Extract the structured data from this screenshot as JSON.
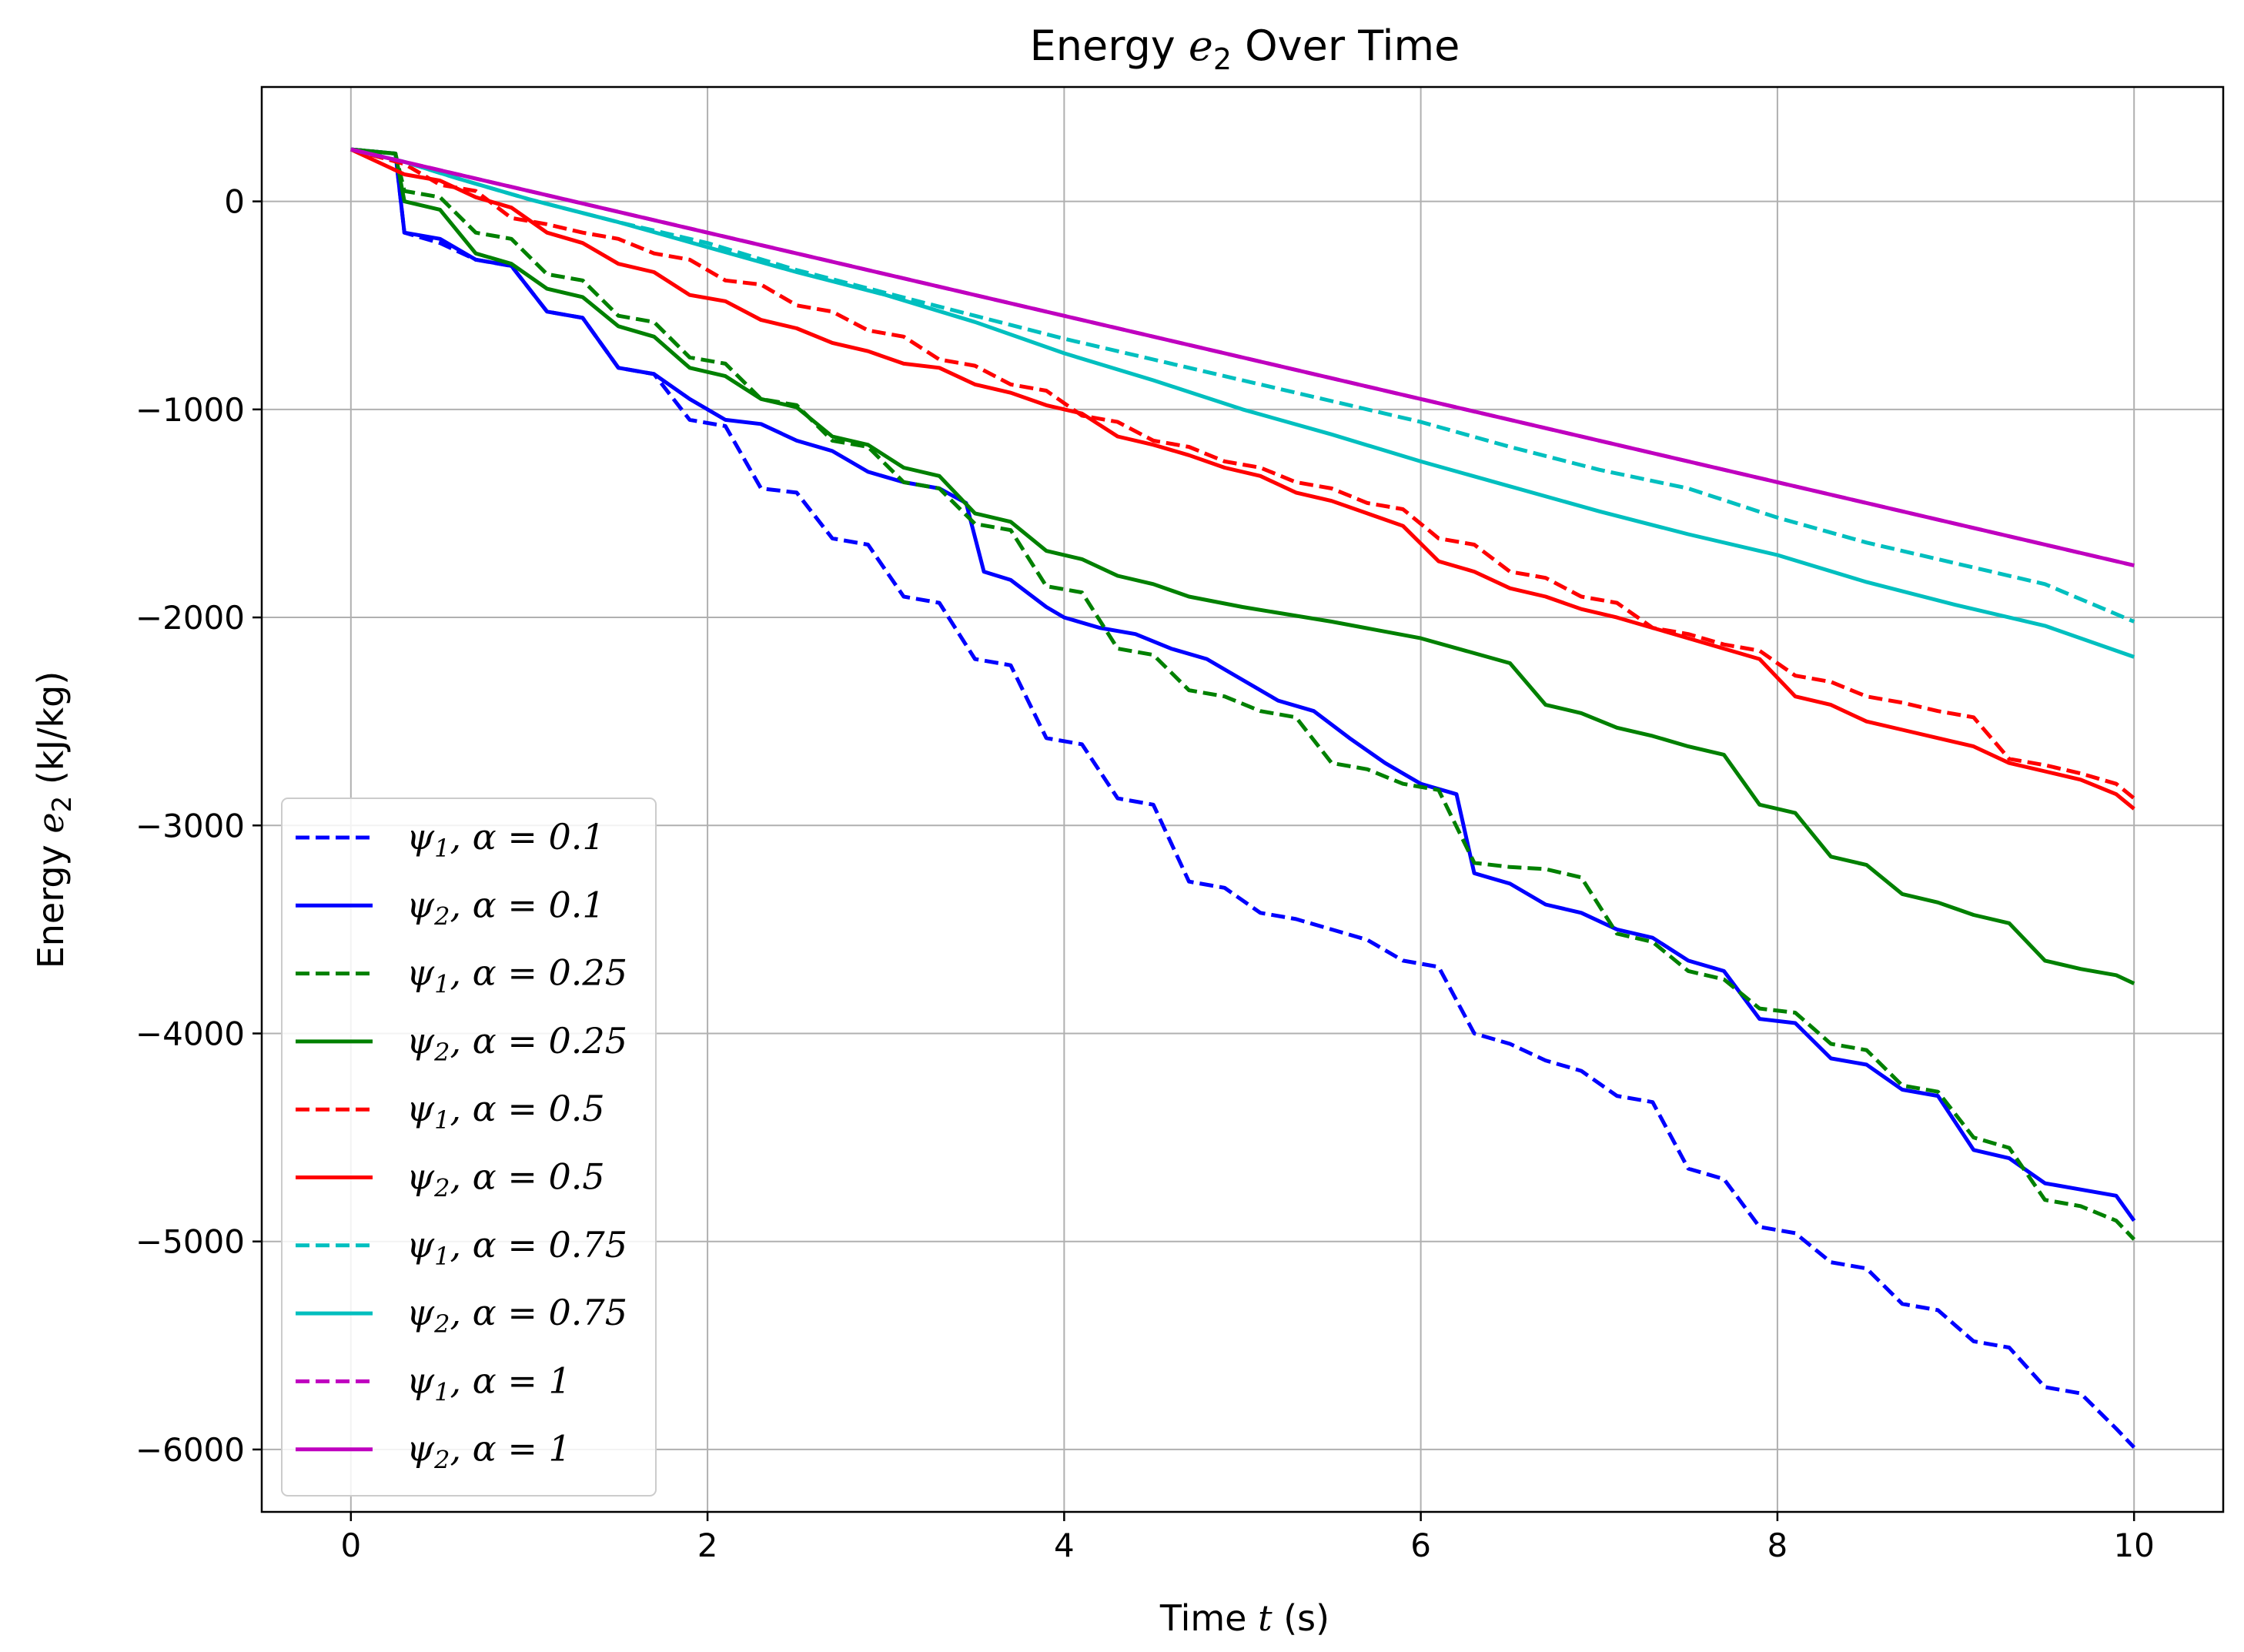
{
  "chart_data": {
    "type": "line",
    "title_prefix": "Energy ",
    "title_var": "e",
    "title_sub": "2",
    "title_suffix": " Over Time",
    "xlabel_prefix": "Time ",
    "xlabel_var": "t",
    "xlabel_suffix": " (s)",
    "ylabel_prefix": "Energy ",
    "ylabel_var": "e",
    "ylabel_sub": "2",
    "ylabel_suffix": " (kJ/kg)",
    "xlim": [
      -0.5,
      10.5
    ],
    "ylim": [
      -6300,
      550
    ],
    "xticks": [
      0,
      2,
      4,
      6,
      8,
      10
    ],
    "xtick_labels": [
      "0",
      "2",
      "4",
      "6",
      "8",
      "10"
    ],
    "yticks": [
      0,
      -1000,
      -2000,
      -3000,
      -4000,
      -5000,
      -6000
    ],
    "ytick_labels": [
      "0",
      "−1000",
      "−2000",
      "−3000",
      "−4000",
      "−5000",
      "−6000"
    ],
    "grid": true,
    "legend_position": "lower-left",
    "series": [
      {
        "name": "ψ1, α = 0.1",
        "psi": "ψ",
        "psi_sub": "1",
        "alpha_text": "α = 0.1",
        "color": "#0000ff",
        "style": "dashed",
        "x": [
          0,
          0.25,
          0.3,
          0.5,
          0.7,
          0.9,
          1.1,
          1.3,
          1.5,
          1.7,
          1.9,
          2.1,
          2.3,
          2.5,
          2.7,
          2.9,
          3.1,
          3.3,
          3.5,
          3.7,
          3.9,
          4.1,
          4.3,
          4.5,
          4.7,
          4.9,
          5.1,
          5.3,
          5.5,
          5.7,
          5.9,
          6.1,
          6.3,
          6.5,
          6.7,
          6.9,
          7.1,
          7.3,
          7.5,
          7.7,
          7.9,
          8.1,
          8.3,
          8.5,
          8.7,
          8.9,
          9.1,
          9.3,
          9.5,
          9.7,
          9.9,
          10
        ],
        "y": [
          250,
          230,
          -150,
          -200,
          -280,
          -310,
          -530,
          -560,
          -800,
          -830,
          -1050,
          -1080,
          -1380,
          -1400,
          -1620,
          -1650,
          -1900,
          -1930,
          -2200,
          -2230,
          -2580,
          -2610,
          -2870,
          -2900,
          -3270,
          -3300,
          -3420,
          -3450,
          -3500,
          -3550,
          -3650,
          -3680,
          -4000,
          -4050,
          -4130,
          -4180,
          -4300,
          -4330,
          -4650,
          -4700,
          -4930,
          -4960,
          -5100,
          -5130,
          -5300,
          -5330,
          -5480,
          -5510,
          -5700,
          -5730,
          -5900,
          -5990
        ]
      },
      {
        "name": "ψ2, α = 0.1",
        "psi": "ψ",
        "psi_sub": "2",
        "alpha_text": "α = 0.1",
        "color": "#0000ff",
        "style": "solid",
        "x": [
          0,
          0.25,
          0.3,
          0.5,
          0.7,
          0.9,
          1.1,
          1.3,
          1.5,
          1.7,
          1.9,
          2.1,
          2.3,
          2.5,
          2.7,
          2.9,
          3.1,
          3.3,
          3.45,
          3.55,
          3.7,
          3.9,
          4.0,
          4.2,
          4.4,
          4.6,
          4.8,
          5.0,
          5.2,
          5.4,
          5.6,
          5.8,
          6.0,
          6.2,
          6.3,
          6.5,
          6.7,
          6.9,
          7.1,
          7.3,
          7.5,
          7.7,
          7.9,
          8.1,
          8.3,
          8.5,
          8.7,
          8.9,
          9.1,
          9.3,
          9.5,
          9.7,
          9.9,
          10
        ],
        "y": [
          250,
          230,
          -150,
          -180,
          -280,
          -310,
          -530,
          -560,
          -800,
          -830,
          -950,
          -1050,
          -1070,
          -1150,
          -1200,
          -1300,
          -1350,
          -1380,
          -1450,
          -1780,
          -1820,
          -1950,
          -2000,
          -2050,
          -2080,
          -2150,
          -2200,
          -2300,
          -2400,
          -2450,
          -2580,
          -2700,
          -2800,
          -2850,
          -3230,
          -3280,
          -3380,
          -3420,
          -3500,
          -3540,
          -3650,
          -3700,
          -3930,
          -3950,
          -4120,
          -4150,
          -4270,
          -4300,
          -4560,
          -4600,
          -4720,
          -4750,
          -4780,
          -4900
        ]
      },
      {
        "name": "ψ1, α = 0.25",
        "psi": "ψ",
        "psi_sub": "1",
        "alpha_text": "α = 0.25",
        "color": "#008000",
        "style": "dashed",
        "x": [
          0,
          0.25,
          0.3,
          0.5,
          0.7,
          0.9,
          1.1,
          1.3,
          1.5,
          1.7,
          1.9,
          2.1,
          2.3,
          2.5,
          2.7,
          2.9,
          3.1,
          3.3,
          3.5,
          3.7,
          3.9,
          4.1,
          4.3,
          4.5,
          4.7,
          4.9,
          5.1,
          5.3,
          5.5,
          5.7,
          5.9,
          6.1,
          6.3,
          6.5,
          6.7,
          6.9,
          7.1,
          7.3,
          7.5,
          7.7,
          7.9,
          8.1,
          8.3,
          8.5,
          8.7,
          8.9,
          9.1,
          9.3,
          9.5,
          9.7,
          9.9,
          10
        ],
        "y": [
          250,
          230,
          50,
          20,
          -150,
          -180,
          -350,
          -380,
          -550,
          -580,
          -750,
          -780,
          -950,
          -980,
          -1150,
          -1180,
          -1350,
          -1380,
          -1550,
          -1580,
          -1850,
          -1880,
          -2150,
          -2180,
          -2350,
          -2380,
          -2450,
          -2480,
          -2700,
          -2730,
          -2800,
          -2830,
          -3180,
          -3200,
          -3210,
          -3250,
          -3520,
          -3560,
          -3700,
          -3740,
          -3880,
          -3900,
          -4050,
          -4080,
          -4250,
          -4280,
          -4500,
          -4550,
          -4800,
          -4830,
          -4900,
          -4990
        ]
      },
      {
        "name": "ψ2, α = 0.25",
        "psi": "ψ",
        "psi_sub": "2",
        "alpha_text": "α = 0.25",
        "color": "#008000",
        "style": "solid",
        "x": [
          0,
          0.25,
          0.3,
          0.5,
          0.7,
          0.9,
          1.1,
          1.3,
          1.5,
          1.7,
          1.9,
          2.1,
          2.3,
          2.5,
          2.7,
          2.9,
          3.1,
          3.3,
          3.5,
          3.7,
          3.9,
          4.1,
          4.3,
          4.5,
          4.7,
          5.0,
          5.5,
          6.0,
          6.5,
          6.7,
          6.9,
          7.1,
          7.3,
          7.5,
          7.7,
          7.9,
          8.1,
          8.3,
          8.5,
          8.7,
          8.9,
          9.1,
          9.3,
          9.5,
          9.7,
          9.9,
          10
        ],
        "y": [
          250,
          230,
          0,
          -40,
          -250,
          -300,
          -420,
          -460,
          -600,
          -650,
          -800,
          -840,
          -950,
          -990,
          -1130,
          -1170,
          -1280,
          -1320,
          -1500,
          -1540,
          -1680,
          -1720,
          -1800,
          -1840,
          -1900,
          -1950,
          -2020,
          -2100,
          -2220,
          -2420,
          -2460,
          -2530,
          -2570,
          -2620,
          -2660,
          -2900,
          -2940,
          -3150,
          -3190,
          -3330,
          -3370,
          -3430,
          -3470,
          -3650,
          -3690,
          -3720,
          -3760
        ]
      },
      {
        "name": "ψ1, α = 0.5",
        "psi": "ψ",
        "psi_sub": "1",
        "alpha_text": "α = 0.5",
        "color": "#ff0000",
        "style": "dashed",
        "x": [
          0,
          0.3,
          0.5,
          0.7,
          0.9,
          1.1,
          1.3,
          1.5,
          1.7,
          1.9,
          2.1,
          2.3,
          2.5,
          2.7,
          2.9,
          3.1,
          3.3,
          3.5,
          3.7,
          3.9,
          4.1,
          4.3,
          4.5,
          4.7,
          4.9,
          5.1,
          5.3,
          5.5,
          5.7,
          5.9,
          6.1,
          6.3,
          6.5,
          6.7,
          6.9,
          7.1,
          7.3,
          7.5,
          7.7,
          7.9,
          8.1,
          8.3,
          8.5,
          8.7,
          8.9,
          9.1,
          9.3,
          9.5,
          9.7,
          9.9,
          10
        ],
        "y": [
          250,
          180,
          80,
          50,
          -80,
          -110,
          -150,
          -180,
          -250,
          -280,
          -380,
          -400,
          -500,
          -530,
          -620,
          -650,
          -760,
          -790,
          -880,
          -910,
          -1030,
          -1060,
          -1150,
          -1180,
          -1250,
          -1280,
          -1350,
          -1380,
          -1450,
          -1480,
          -1620,
          -1650,
          -1780,
          -1810,
          -1900,
          -1930,
          -2050,
          -2080,
          -2130,
          -2160,
          -2280,
          -2310,
          -2380,
          -2410,
          -2450,
          -2480,
          -2680,
          -2710,
          -2750,
          -2800,
          -2870
        ]
      },
      {
        "name": "ψ2, α = 0.5",
        "psi": "ψ",
        "psi_sub": "2",
        "alpha_text": "α = 0.5",
        "color": "#ff0000",
        "style": "solid",
        "x": [
          0,
          0.3,
          0.5,
          0.7,
          0.9,
          1.1,
          1.3,
          1.5,
          1.7,
          1.9,
          2.1,
          2.3,
          2.5,
          2.7,
          2.9,
          3.1,
          3.3,
          3.5,
          3.7,
          3.9,
          4.1,
          4.3,
          4.5,
          4.7,
          4.9,
          5.1,
          5.3,
          5.5,
          5.7,
          5.9,
          6.1,
          6.3,
          6.5,
          6.7,
          6.9,
          7.1,
          7.3,
          7.5,
          7.7,
          7.9,
          8.1,
          8.3,
          8.5,
          8.7,
          8.9,
          9.1,
          9.3,
          9.5,
          9.7,
          9.9,
          10
        ],
        "y": [
          250,
          130,
          100,
          20,
          -30,
          -150,
          -200,
          -300,
          -340,
          -450,
          -480,
          -570,
          -610,
          -680,
          -720,
          -780,
          -800,
          -880,
          -920,
          -980,
          -1020,
          -1130,
          -1170,
          -1220,
          -1280,
          -1320,
          -1400,
          -1440,
          -1500,
          -1560,
          -1730,
          -1780,
          -1860,
          -1900,
          -1960,
          -2000,
          -2050,
          -2100,
          -2150,
          -2200,
          -2380,
          -2420,
          -2500,
          -2540,
          -2580,
          -2620,
          -2700,
          -2740,
          -2780,
          -2850,
          -2920
        ]
      },
      {
        "name": "ψ1, α = 0.75",
        "psi": "ψ",
        "psi_sub": "1",
        "alpha_text": "α = 0.75",
        "color": "#00bfbf",
        "style": "dashed",
        "x": [
          0,
          0.3,
          0.6,
          1.0,
          1.5,
          2.0,
          2.5,
          3.0,
          3.5,
          4.0,
          4.5,
          5.0,
          5.5,
          6.0,
          6.5,
          7.0,
          7.5,
          8.0,
          8.5,
          9.0,
          9.5,
          10
        ],
        "y": [
          250,
          190,
          110,
          10,
          -100,
          -200,
          -330,
          -440,
          -550,
          -660,
          -760,
          -860,
          -960,
          -1060,
          -1180,
          -1290,
          -1380,
          -1520,
          -1640,
          -1740,
          -1840,
          -2020
        ]
      },
      {
        "name": "ψ2, α = 0.75",
        "psi": "ψ",
        "psi_sub": "2",
        "alpha_text": "α = 0.75",
        "color": "#00bfbf",
        "style": "solid",
        "x": [
          0,
          0.3,
          0.6,
          1.0,
          1.5,
          2.0,
          2.5,
          3.0,
          3.5,
          4.0,
          4.5,
          5.0,
          5.5,
          6.0,
          6.5,
          7.0,
          7.5,
          8.0,
          8.5,
          9.0,
          9.5,
          10
        ],
        "y": [
          250,
          190,
          110,
          10,
          -100,
          -220,
          -340,
          -450,
          -580,
          -730,
          -860,
          -1000,
          -1120,
          -1250,
          -1370,
          -1490,
          -1600,
          -1700,
          -1830,
          -1940,
          -2040,
          -2190
        ]
      },
      {
        "name": "ψ1, α = 1",
        "psi": "ψ",
        "psi_sub": "1",
        "alpha_text": "α = 1",
        "color": "#bf00bf",
        "style": "dashed",
        "x": [
          0,
          10
        ],
        "y": [
          250,
          -1750
        ]
      },
      {
        "name": "ψ2, α = 1",
        "psi": "ψ",
        "psi_sub": "2",
        "alpha_text": "α = 1",
        "color": "#bf00bf",
        "style": "solid",
        "x": [
          0,
          10
        ],
        "y": [
          250,
          -1750
        ]
      }
    ]
  }
}
